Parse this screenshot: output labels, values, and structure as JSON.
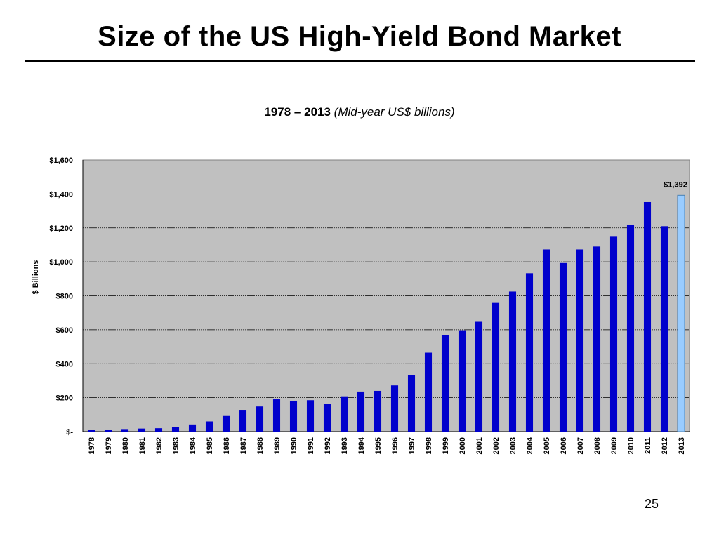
{
  "slide": {
    "title": "Size of the US High-Yield Bond Market",
    "page_number": "25"
  },
  "chart_data": {
    "type": "bar",
    "title_years": "1978 –  2013",
    "title_note": "(Mid-year US$ billions)",
    "ylabel": "$ Billions",
    "ylim": [
      0,
      1600
    ],
    "yticks": [
      0,
      200,
      400,
      600,
      800,
      1000,
      1200,
      1400,
      1600
    ],
    "ytick_labels": [
      "$-",
      "$200",
      "$400",
      "$600",
      "$800",
      "$1,000",
      "$1,200",
      "$1,400",
      "$1,600"
    ],
    "grid": true,
    "categories": [
      "1978",
      "1979",
      "1980",
      "1981",
      "1982",
      "1983",
      "1984",
      "1985",
      "1986",
      "1987",
      "1988",
      "1989",
      "1990",
      "1991",
      "1992",
      "1993",
      "1994",
      "1995",
      "1996",
      "1997",
      "1998",
      "1999",
      "2000",
      "2001",
      "2002",
      "2003",
      "2004",
      "2005",
      "2006",
      "2007",
      "2008",
      "2009",
      "2010",
      "2011",
      "2012",
      "2013"
    ],
    "values": [
      10,
      10,
      15,
      18,
      20,
      28,
      42,
      60,
      92,
      128,
      148,
      190,
      182,
      185,
      162,
      208,
      236,
      240,
      272,
      333,
      465,
      570,
      597,
      647,
      758,
      825,
      933,
      1073,
      993,
      1073,
      1090,
      1152,
      1219,
      1352,
      1210,
      1392
    ],
    "highlight_index": 35,
    "highlight_label": "$1,392",
    "colors": {
      "bar": "#0000cc",
      "bar_highlight": "#99ccff",
      "plot_background": "#c0c0c0",
      "gridline": "#000000"
    }
  }
}
